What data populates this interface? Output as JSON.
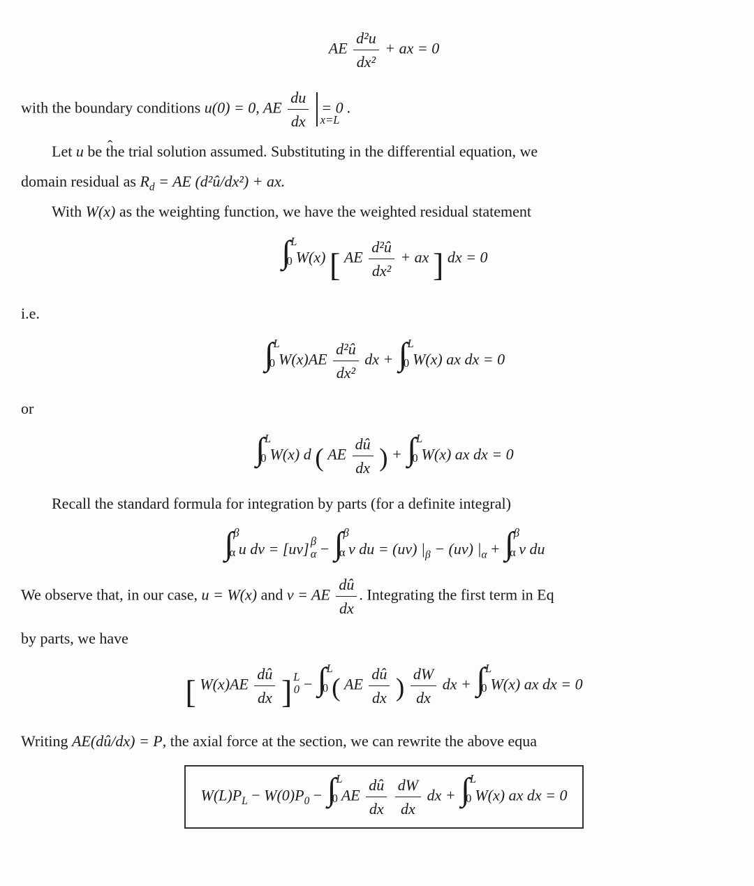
{
  "font": {
    "family": "Times New Roman",
    "body_size_pt": 16,
    "eq_size_pt": 16,
    "color": "#1a1a1a"
  },
  "background_color": "#fdfdfc",
  "box_border_color": "#333333",
  "symbols": {
    "uhat": "û",
    "int": "∫",
    "alpha": "α",
    "beta": "β"
  },
  "eq1": {
    "lhs_a": "AE",
    "frac_num": "d²u",
    "frac_den": "dx²",
    "plus": " +  ax  =  0"
  },
  "p1a": "with the boundary conditions ",
  "bc1": "u(0) = 0, ",
  "bc2a": "AE",
  "bc2_num": "du",
  "bc2_den": "dx",
  "bc2_eval": "x=L",
  "bc2_rhs": " =  0 .",
  "p2a": "Let ",
  "p2b": " be the trial solution assumed. Substituting in the differential equation, we",
  "p3a": "domain residual as ",
  "p3b": "R",
  "p3b_sub": "d",
  "p3c": " = AE (d²û/dx²) + ax.",
  "p4a": "With ",
  "p4b": "W(x)",
  "p4c": " as the weighting function, we have the weighted residual statement",
  "eq2": {
    "int_lo": "0",
    "int_up": "L",
    "W": "W(x)",
    "AE": "AE",
    "frac_num": "d²û",
    "frac_den": "dx²",
    "plus": " +  ax",
    "dx_eq": "dx  =  0"
  },
  "ie": "i.e.",
  "eq3": {
    "int_lo": "0",
    "int_up": "L",
    "t1a": "W(x)AE",
    "t1_num": "d²û",
    "t1_den": "dx²",
    "t1_dx": " dx  + ",
    "t2a": "W(x) ax dx  =  0"
  },
  "or": "or",
  "eq4": {
    "int_lo": "0",
    "int_up": "L",
    "t1a": "W(x) d",
    "AE": "AE",
    "frac_num": "dû",
    "frac_den": "dx",
    "plus": "  + ",
    "t2": "W(x) ax dx  =  0"
  },
  "p5": "Recall the standard formula for integration by parts (for a definite integral)",
  "eq5": {
    "a_lo": "α",
    "a_up": "β",
    "l1": "u dv  =  [uv]",
    "sup": "β",
    "sub": "α",
    "l2": "  −  ",
    "l3": "v du  =  (uv) |",
    "l3sub1": "β",
    "l4": "  −  (uv) |",
    "l4sub": "α",
    "l5": "  +  ",
    "l6": "v du"
  },
  "p6a": "We observe that, in our case, ",
  "p6b": "u = W(x)",
  "p6c": " and ",
  "p6d": "v = AE",
  "p6_num": "dû",
  "p6_den": "dx",
  "p6e": ". Integrating the first term in Eq",
  "p7": "by parts, we have",
  "eq6": {
    "br_in_a": "W(x)AE",
    "br_num": "dû",
    "br_den": "dx",
    "sup": "L",
    "sub": "0",
    "minus": "  −  ",
    "int_lo": "0",
    "int_up": "L",
    "p_in_a": "AE",
    "p_num": "dû",
    "p_den": "dx",
    "mul_num": "dW",
    "mul_den": "dx",
    "mul_dx": " dx  + ",
    "t2": "W(x) ax dx  =  0"
  },
  "p8a": "Writing ",
  "p8b": "AE(dû/dx) = P",
  "p8c": ", the axial force at the section, we can rewrite the above equa",
  "eq7": {
    "t1": "W(L)P",
    "t1sub": "L",
    "m1": "  −  ",
    "t2": "W(0)P",
    "t2sub": "0",
    "m2": "  −  ",
    "int_lo": "0",
    "int_up": "L",
    "AE": "AE ",
    "f1_num": "dû",
    "f1_den": "dx",
    "f2_num": "dW",
    "f2_den": "dx",
    "dx": "dx  + ",
    "t3": "W(x) ax dx  =  0"
  }
}
